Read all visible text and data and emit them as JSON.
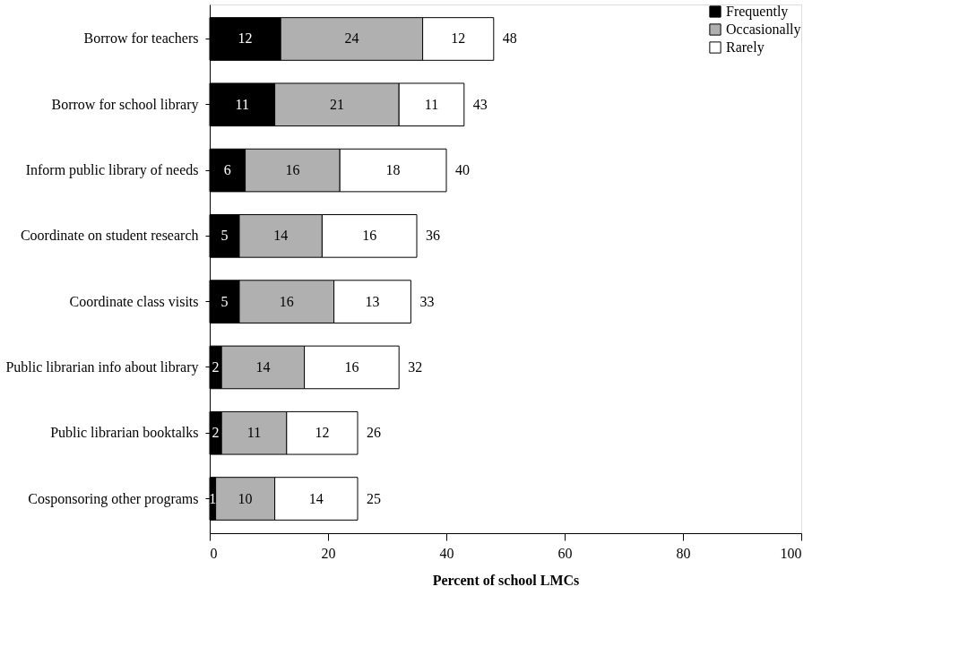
{
  "chart_data": {
    "type": "bar",
    "orientation": "horizontal",
    "stacked": true,
    "xlabel": "Percent of school LMCs",
    "categories": [
      "Borrow for teachers",
      "Borrow for school library",
      "Inform public library of needs",
      "Coordinate on student research",
      "Coordinate class visits",
      "Public librarian info about library",
      "Public librarian booktalks",
      "Cosponsoring other programs"
    ],
    "series": [
      {
        "name": "Frequently",
        "color": "#000000",
        "values": [
          12,
          11,
          6,
          5,
          5,
          2,
          2,
          1
        ]
      },
      {
        "name": "Occasionally",
        "color": "#b0b0b0",
        "values": [
          24,
          21,
          16,
          14,
          16,
          14,
          11,
          10
        ]
      },
      {
        "name": "Rarely",
        "color": "#ffffff",
        "values": [
          12,
          11,
          18,
          16,
          13,
          16,
          12,
          14
        ]
      }
    ],
    "totals": [
      "48",
      "43",
      "40",
      "36",
      "33",
      "32",
      "26",
      "25"
    ],
    "data_labels": true,
    "xlim": [
      0,
      100
    ],
    "xticks": [
      0,
      20,
      40,
      60,
      80,
      100
    ],
    "grid": false,
    "legend": "top right"
  }
}
